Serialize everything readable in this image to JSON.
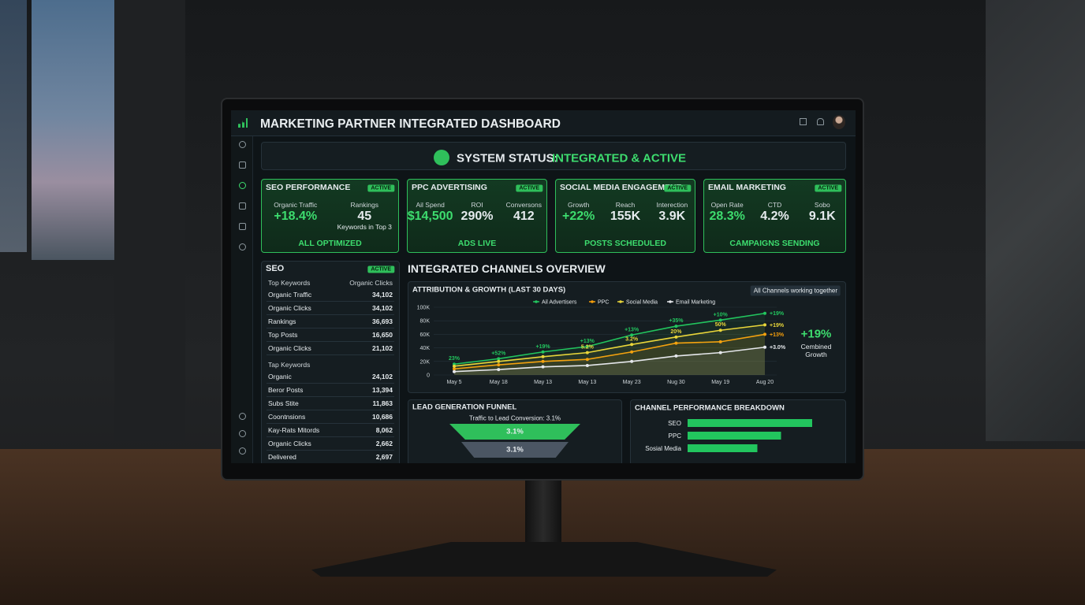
{
  "header": {
    "title": "MARKETING PARTNER INTEGRATED DASHBOARD"
  },
  "status": {
    "label": "SYSTEM STATUS:",
    "value": "INTEGRATED & ACTIVE"
  },
  "cards": [
    {
      "title": "SEO PERFORMANCE",
      "badge": "ACTIVE",
      "metrics": [
        {
          "label": "Organic Traffic",
          "value": "+18.4%"
        },
        {
          "label": "Rankings",
          "value": "45",
          "note": "Keywords in Top 3"
        }
      ],
      "footer": "ALL OPTIMIZED"
    },
    {
      "title": "PPC ADVERTISING",
      "badge": "ACTIVE",
      "metrics": [
        {
          "label": "Ail Spend",
          "value": "$14,500"
        },
        {
          "label": "ROI",
          "value": "290%"
        },
        {
          "label": "Conversons",
          "value": "412"
        }
      ],
      "footer": "ADS LIVE"
    },
    {
      "title": "SOCIAL MEDIA ENGAGEMENT",
      "badge": "ACTIVE",
      "metrics": [
        {
          "label": "Growth",
          "value": "+22%"
        },
        {
          "label": "Reach",
          "value": "155K"
        },
        {
          "label": "Interection",
          "value": "3.9K"
        }
      ],
      "footer": "POSTS SCHEDULED"
    },
    {
      "title": "EMAIL MARKETING",
      "badge": "ACTIVE",
      "metrics": [
        {
          "label": "Open Rate",
          "value": "28.3%"
        },
        {
          "label": "CTD",
          "value": "4.2%"
        },
        {
          "label": "Sobo",
          "value": "9.1K"
        }
      ],
      "footer": "CAMPAIGNS SENDING"
    }
  ],
  "seo_panel": {
    "title": "SEO",
    "badge": "ACTIVE",
    "groups": [
      {
        "header": [
          "Top Keywords",
          "Organic Clicks"
        ],
        "rows": [
          [
            "Organic Traffic",
            "34,102"
          ],
          [
            "Organic Clicks",
            "34,102"
          ],
          [
            "Rankings",
            "36,693"
          ],
          [
            "Top Posts",
            "16,650"
          ],
          [
            "Organic Clicks",
            "21,102"
          ]
        ]
      },
      {
        "header": [
          "Tap Keywords"
        ],
        "rows": [
          [
            "Organic",
            "24,102"
          ],
          [
            "Beror Posts",
            "13,394"
          ],
          [
            "Subs Stite",
            "11,863"
          ],
          [
            "Coontnsions",
            "10,686"
          ],
          [
            "Kay-Rats Mitords",
            "8,062"
          ],
          [
            "Organic Clicks",
            "2,662"
          ],
          [
            "Delivered",
            "2,697"
          ]
        ]
      }
    ]
  },
  "overview": {
    "title": "INTEGRATED CHANNELS OVERVIEW"
  },
  "attribution_chart": {
    "type": "line",
    "title": "ATTRIBUTION & GROWTH (LAST 30 DAYS)",
    "badge": "All Channels working together",
    "categories": [
      "May 5",
      "May 18",
      "May 13",
      "May 13",
      "May 23",
      "Nug 30",
      "May 19",
      "Aug 20"
    ],
    "ylim": [
      0,
      100000
    ],
    "yticks": [
      0,
      {
        "value": 20000,
        "label": "20K"
      },
      {
        "value": 40000,
        "label": "40K"
      },
      {
        "value": 60000,
        "label": "60K"
      },
      {
        "value": 80000,
        "label": "80K"
      },
      {
        "value": 100000,
        "label": "100K"
      }
    ],
    "series": [
      {
        "name": "Ail Advertisers",
        "color": "#22c55e",
        "values": [
          16000,
          24000,
          34000,
          42000,
          59000,
          72000,
          81000,
          91000
        ],
        "point_labels": [
          "23%",
          "+52%",
          "+19%",
          "+13%",
          "+13%",
          "+35%",
          "+10%",
          "+19%"
        ]
      },
      {
        "name": "PPC",
        "color": "#f59e0b",
        "values": [
          9000,
          15000,
          20000,
          23000,
          34000,
          47000,
          49000,
          60000
        ],
        "point_labels": [
          null,
          null,
          null,
          null,
          null,
          null,
          null,
          "+13%"
        ]
      },
      {
        "name": "Social Media",
        "color": "#e9d63a",
        "values": [
          13000,
          20000,
          27000,
          33000,
          45000,
          56000,
          66000,
          74000
        ],
        "point_labels": [
          null,
          null,
          null,
          "5.2%",
          "3.2%",
          "20%",
          "50%",
          "+19%"
        ]
      },
      {
        "name": "Email Marketing",
        "color": "#e5e7eb",
        "values": [
          5000,
          8000,
          12000,
          14000,
          20000,
          28000,
          33000,
          41000
        ],
        "point_labels": [
          null,
          null,
          null,
          null,
          null,
          null,
          null,
          "+3.0%"
        ]
      }
    ],
    "summary": {
      "value": "+19%",
      "label": "Cembined Growth"
    }
  },
  "funnel": {
    "title": "LEAD GENERATION FUNNEL",
    "subtitle": "Traffic to Lead Conversion: 3.1%",
    "stages": [
      "3.1%",
      "3.1%"
    ]
  },
  "channel_chart": {
    "type": "bar",
    "title": "CHANNEL PERFORMANCE BREAKDOWN",
    "categories": [
      "SEO",
      "PPC",
      "Sosial Media"
    ],
    "values": [
      100,
      75,
      56
    ],
    "color": "#22c55e"
  }
}
